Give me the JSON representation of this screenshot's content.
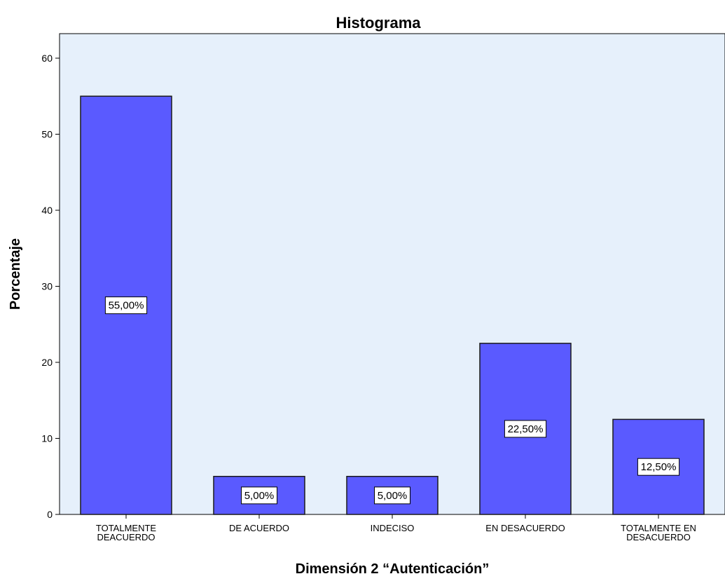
{
  "chart_data": {
    "type": "bar",
    "title": "Histograma",
    "xlabel": "Dimensión 2  “Autenticación”",
    "ylabel": "Porcentaje",
    "ylim": [
      0,
      62
    ],
    "yticks": [
      0,
      10,
      20,
      30,
      40,
      50,
      60
    ],
    "grid": false,
    "categories": [
      [
        "TOTALMENTE",
        "DEACUERDO"
      ],
      [
        "DE ACUERDO"
      ],
      [
        "INDECISO"
      ],
      [
        "EN DESACUERDO"
      ],
      [
        "TOTALMENTE EN",
        "DESACUERDO"
      ]
    ],
    "values": [
      55,
      5,
      5,
      22.5,
      12.5
    ],
    "data_labels": [
      "55,00%",
      "5,00%",
      "5,00%",
      "22,50%",
      "12,50%"
    ],
    "colors": {
      "bar": "#5a5aff",
      "bar_stroke": "#1a1a1a",
      "plot_bg": "#e6f0fb"
    }
  }
}
